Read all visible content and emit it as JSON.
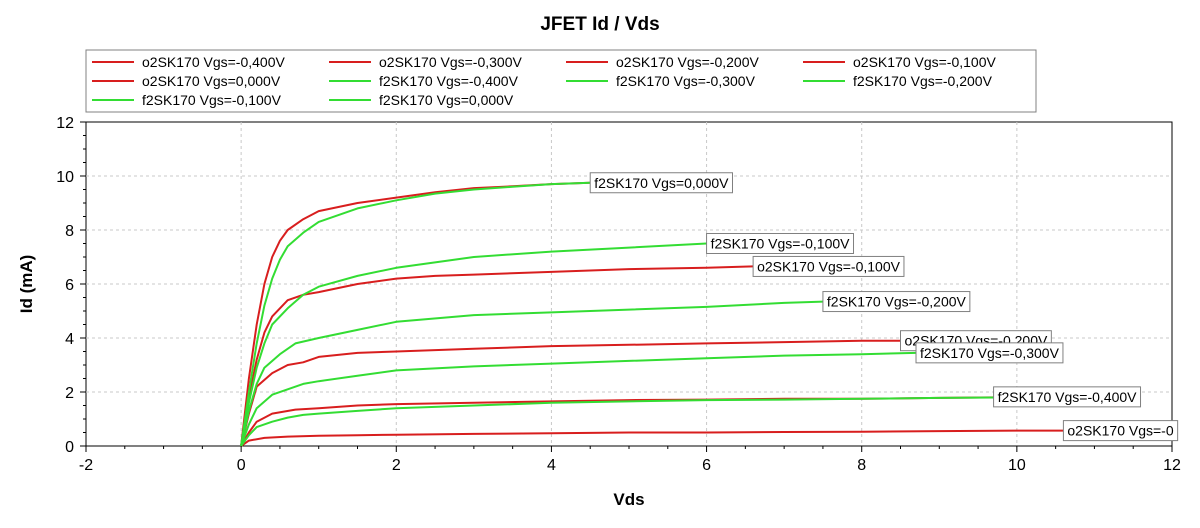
{
  "chart_data": {
    "type": "line",
    "title": "JFET Id / Vds",
    "xlabel": "Vds",
    "ylabel": "Id (mA)",
    "xlim": [
      -2,
      12
    ],
    "ylim": [
      0,
      12
    ],
    "xticks": [
      -2,
      0,
      2,
      4,
      6,
      8,
      10,
      12
    ],
    "yticks": [
      0,
      2,
      4,
      6,
      8,
      10,
      12
    ],
    "grid": true,
    "legend_position": "top",
    "colors": {
      "o2SK170": "#d81e1e",
      "f2SK170": "#33dd33"
    },
    "series": [
      {
        "name": "o2SK170 Vgs=-0,400V",
        "device": "o2SK170",
        "x": [
          0,
          0.1,
          0.3,
          0.6,
          1.0,
          1.5,
          2.0,
          3.0,
          4.0,
          5.0,
          6.0,
          7.0,
          8.0,
          9.0,
          10.0,
          10.7
        ],
        "y": [
          0,
          0.2,
          0.3,
          0.35,
          0.38,
          0.4,
          0.42,
          0.45,
          0.47,
          0.5,
          0.5,
          0.52,
          0.53,
          0.55,
          0.57,
          0.57
        ]
      },
      {
        "name": "o2SK170 Vgs=-0,300V",
        "device": "o2SK170",
        "x": [
          0,
          0.1,
          0.2,
          0.4,
          0.7,
          1.0,
          1.5,
          2.0,
          3.0,
          4.0,
          5.0,
          6.0,
          7.0,
          8.0,
          9.0,
          9.7
        ],
        "y": [
          0,
          0.5,
          0.9,
          1.2,
          1.35,
          1.4,
          1.5,
          1.55,
          1.6,
          1.65,
          1.7,
          1.72,
          1.75,
          1.75,
          1.78,
          1.8
        ]
      },
      {
        "name": "o2SK170 Vgs=-0,200V",
        "device": "o2SK170",
        "x": [
          0,
          0.1,
          0.2,
          0.4,
          0.6,
          0.8,
          1.0,
          1.5,
          2.0,
          3.0,
          4.0,
          5.0,
          6.0,
          7.0,
          8.0,
          8.5
        ],
        "y": [
          0,
          1.2,
          2.2,
          2.7,
          3.0,
          3.1,
          3.3,
          3.45,
          3.5,
          3.6,
          3.7,
          3.75,
          3.8,
          3.85,
          3.9,
          3.9
        ]
      },
      {
        "name": "o2SK170 Vgs=-0,100V",
        "device": "o2SK170",
        "x": [
          0,
          0.1,
          0.2,
          0.3,
          0.4,
          0.6,
          0.8,
          1.0,
          1.5,
          2.0,
          2.5,
          3.0,
          4.0,
          5.0,
          6.0,
          6.6
        ],
        "y": [
          0,
          1.8,
          3.2,
          4.2,
          4.8,
          5.4,
          5.6,
          5.7,
          6.0,
          6.2,
          6.3,
          6.35,
          6.45,
          6.55,
          6.6,
          6.65
        ]
      },
      {
        "name": "o2SK170 Vgs=0,000V",
        "device": "o2SK170",
        "x": [
          0,
          0.1,
          0.2,
          0.3,
          0.4,
          0.5,
          0.6,
          0.8,
          1.0,
          1.5,
          2.0,
          2.5,
          3.0,
          3.5,
          4.0,
          4.5
        ],
        "y": [
          0,
          2.5,
          4.5,
          6.0,
          7.0,
          7.6,
          8.0,
          8.4,
          8.7,
          9.0,
          9.2,
          9.4,
          9.55,
          9.62,
          9.7,
          9.75
        ]
      },
      {
        "name": "f2SK170 Vgs=-0,400V",
        "device": "f2SK170",
        "x": [
          0,
          0.1,
          0.2,
          0.4,
          0.6,
          0.8,
          1.0,
          1.5,
          2.0,
          3.0,
          4.0,
          5.0,
          6.0,
          7.0,
          8.0,
          9.0,
          10.0,
          10.5
        ],
        "y": [
          0,
          0.4,
          0.7,
          0.9,
          1.05,
          1.15,
          1.2,
          1.3,
          1.4,
          1.5,
          1.6,
          1.65,
          1.7,
          1.72,
          1.75,
          1.78,
          1.8,
          1.82
        ]
      },
      {
        "name": "f2SK170 Vgs=-0,300V",
        "device": "f2SK170",
        "x": [
          0,
          0.1,
          0.2,
          0.4,
          0.6,
          0.8,
          1.0,
          1.5,
          2.0,
          3.0,
          4.0,
          5.0,
          6.0,
          7.0,
          8.0,
          8.7
        ],
        "y": [
          0,
          0.8,
          1.4,
          1.9,
          2.1,
          2.3,
          2.4,
          2.6,
          2.8,
          2.95,
          3.05,
          3.15,
          3.25,
          3.35,
          3.4,
          3.45
        ]
      },
      {
        "name": "f2SK170 Vgs=-0,200V",
        "device": "f2SK170",
        "x": [
          0,
          0.1,
          0.2,
          0.3,
          0.5,
          0.7,
          1.0,
          1.5,
          2.0,
          3.0,
          4.0,
          5.0,
          6.0,
          7.0,
          7.5
        ],
        "y": [
          0,
          1.3,
          2.3,
          2.9,
          3.4,
          3.8,
          4.0,
          4.3,
          4.6,
          4.85,
          4.95,
          5.05,
          5.15,
          5.3,
          5.35
        ]
      },
      {
        "name": "f2SK170 Vgs=-0,100V",
        "device": "f2SK170",
        "x": [
          0,
          0.1,
          0.2,
          0.3,
          0.4,
          0.6,
          0.8,
          1.0,
          1.5,
          2.0,
          2.5,
          3.0,
          4.0,
          5.0,
          6.0
        ],
        "y": [
          0,
          1.6,
          2.9,
          3.8,
          4.5,
          5.1,
          5.6,
          5.9,
          6.3,
          6.6,
          6.8,
          7.0,
          7.2,
          7.35,
          7.5
        ]
      },
      {
        "name": "f2SK170 Vgs=0,000V",
        "device": "f2SK170",
        "x": [
          0,
          0.1,
          0.2,
          0.3,
          0.4,
          0.5,
          0.6,
          0.8,
          1.0,
          1.5,
          2.0,
          2.5,
          3.0,
          3.5,
          4.0,
          4.5
        ],
        "y": [
          0,
          2.0,
          3.8,
          5.2,
          6.2,
          6.9,
          7.4,
          7.9,
          8.3,
          8.8,
          9.1,
          9.35,
          9.5,
          9.6,
          9.7,
          9.75
        ]
      }
    ],
    "annotations": [
      {
        "text": "f2SK170 Vgs=0,000V",
        "x": 4.5,
        "y": 9.75
      },
      {
        "text": "f2SK170 Vgs=-0,100V",
        "x": 6.0,
        "y": 7.5
      },
      {
        "text": "o2SK170 Vgs=-0,100V",
        "x": 6.6,
        "y": 6.65
      },
      {
        "text": "f2SK170 Vgs=-0,200V",
        "x": 7.5,
        "y": 5.35
      },
      {
        "text": "o2SK170 Vgs=-0,200V",
        "x": 8.5,
        "y": 3.9
      },
      {
        "text": "f2SK170 Vgs=-0,300V",
        "x": 8.7,
        "y": 3.45
      },
      {
        "text": "f2SK170 Vgs=-0,400V",
        "x": 9.7,
        "y": 1.82
      },
      {
        "text": "o2SK170 Vgs=-0",
        "x": 10.6,
        "y": 0.57
      }
    ]
  }
}
